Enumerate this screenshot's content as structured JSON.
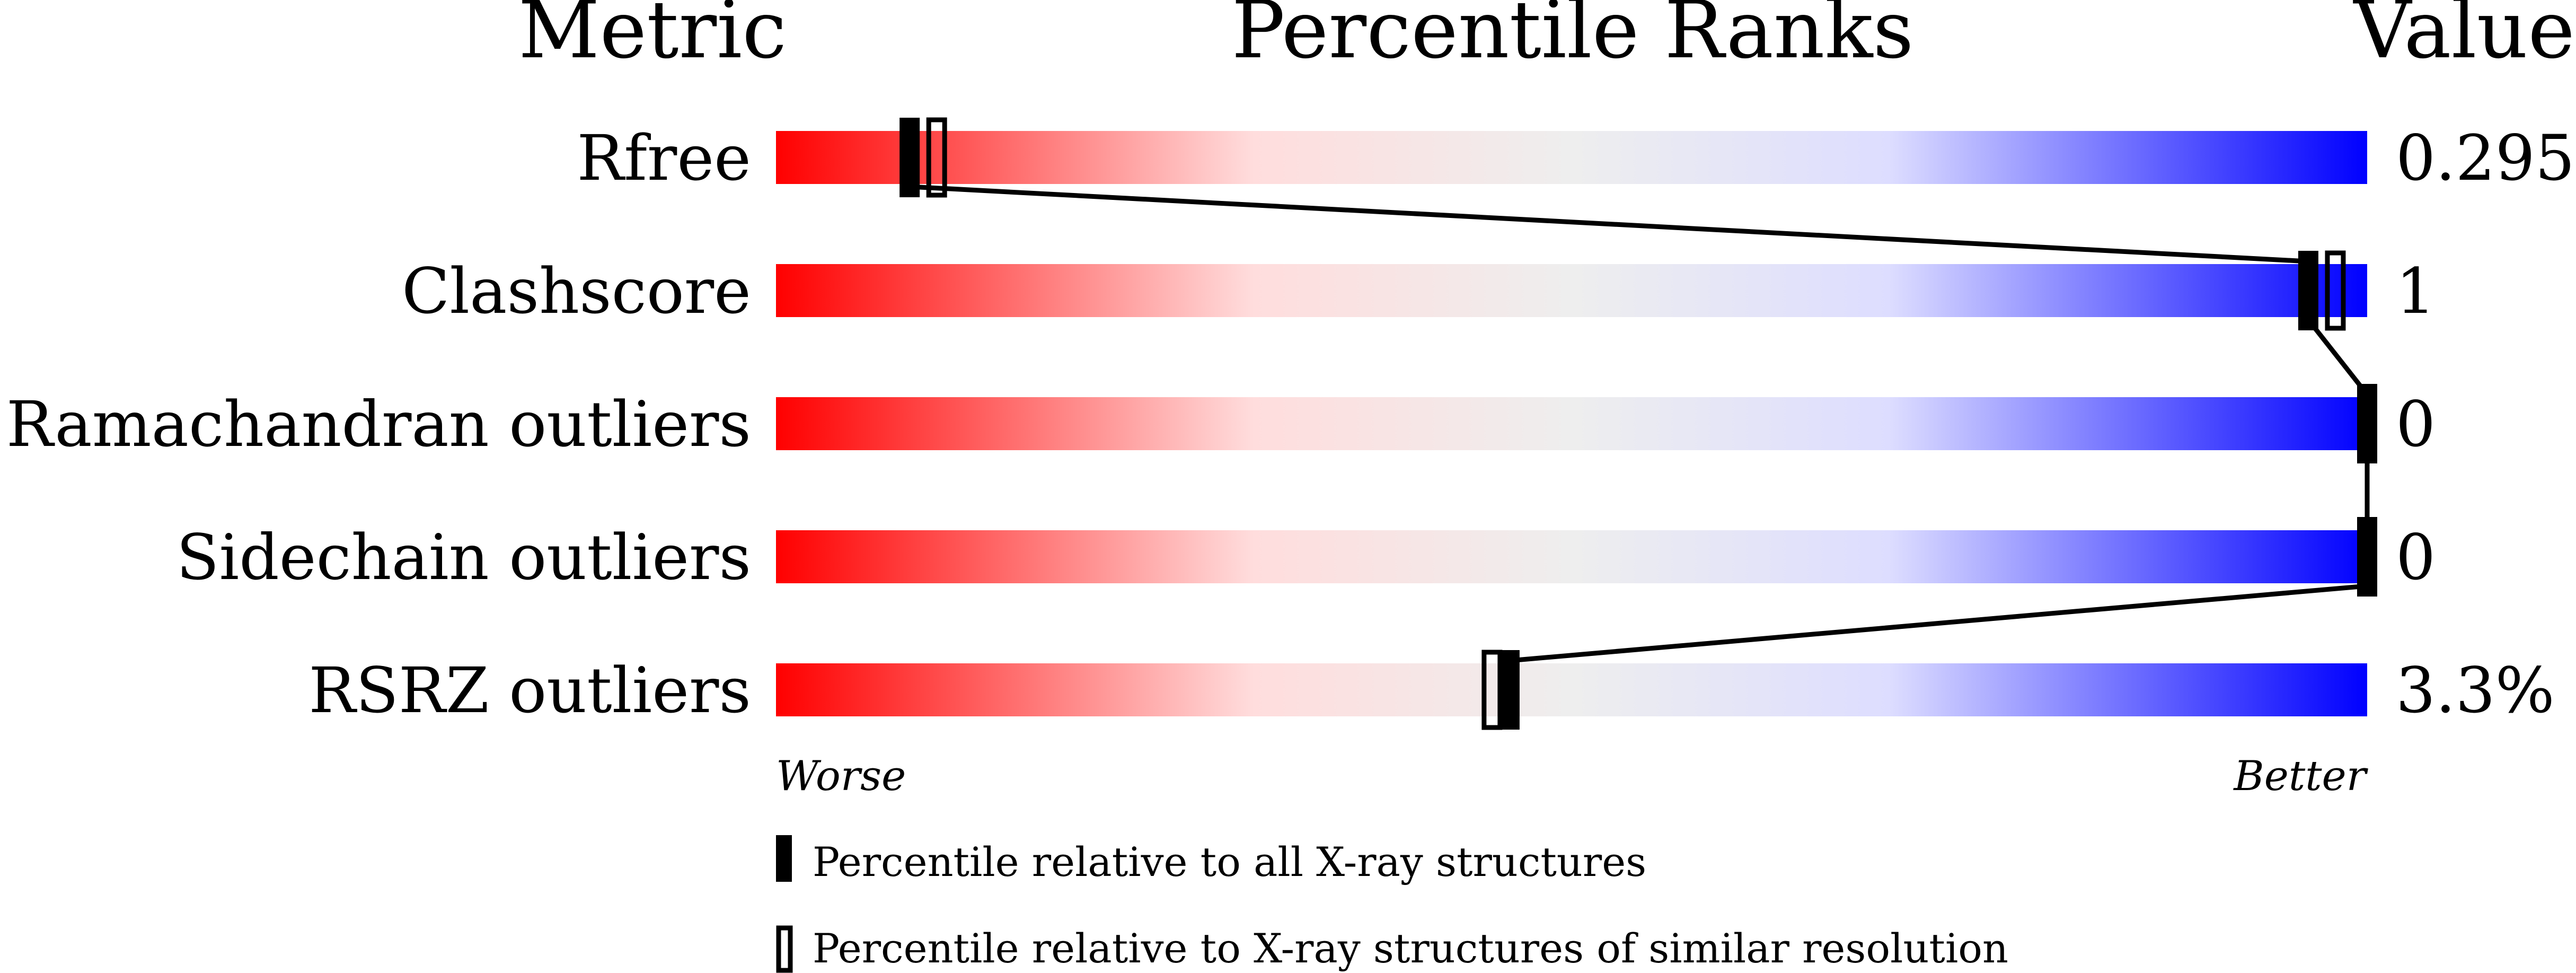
{
  "chart_data": {
    "type": "percentile-slider",
    "headers": {
      "metric": "Metric",
      "ranks": "Percentile Ranks",
      "value": "Value"
    },
    "axis": {
      "worse": "Worse",
      "better": "Better",
      "range": [
        0,
        100
      ]
    },
    "gradient_colors": [
      "#ff0000",
      "#ffdddd",
      "#eeeeee",
      "#ddddff",
      "#0000ff"
    ],
    "metrics": [
      {
        "name": "Rfree",
        "value": "0.295",
        "percentile_all": 8.4,
        "percentile_similar": 10.1
      },
      {
        "name": "Clashscore",
        "value": "1",
        "percentile_all": 96.3,
        "percentile_similar": 98.0
      },
      {
        "name": "Ramachandran outliers",
        "value": "0",
        "percentile_all": 100,
        "percentile_similar": null
      },
      {
        "name": "Sidechain outliers",
        "value": "0",
        "percentile_all": 100,
        "percentile_similar": null
      },
      {
        "name": "RSRZ outliers",
        "value": "3.3%",
        "percentile_all": 46.1,
        "percentile_similar": 45.0
      }
    ],
    "legend": [
      {
        "marker": "filled",
        "label": "Percentile relative to all X-ray structures"
      },
      {
        "marker": "open",
        "label": "Percentile relative to X-ray structures of similar resolution"
      }
    ]
  }
}
